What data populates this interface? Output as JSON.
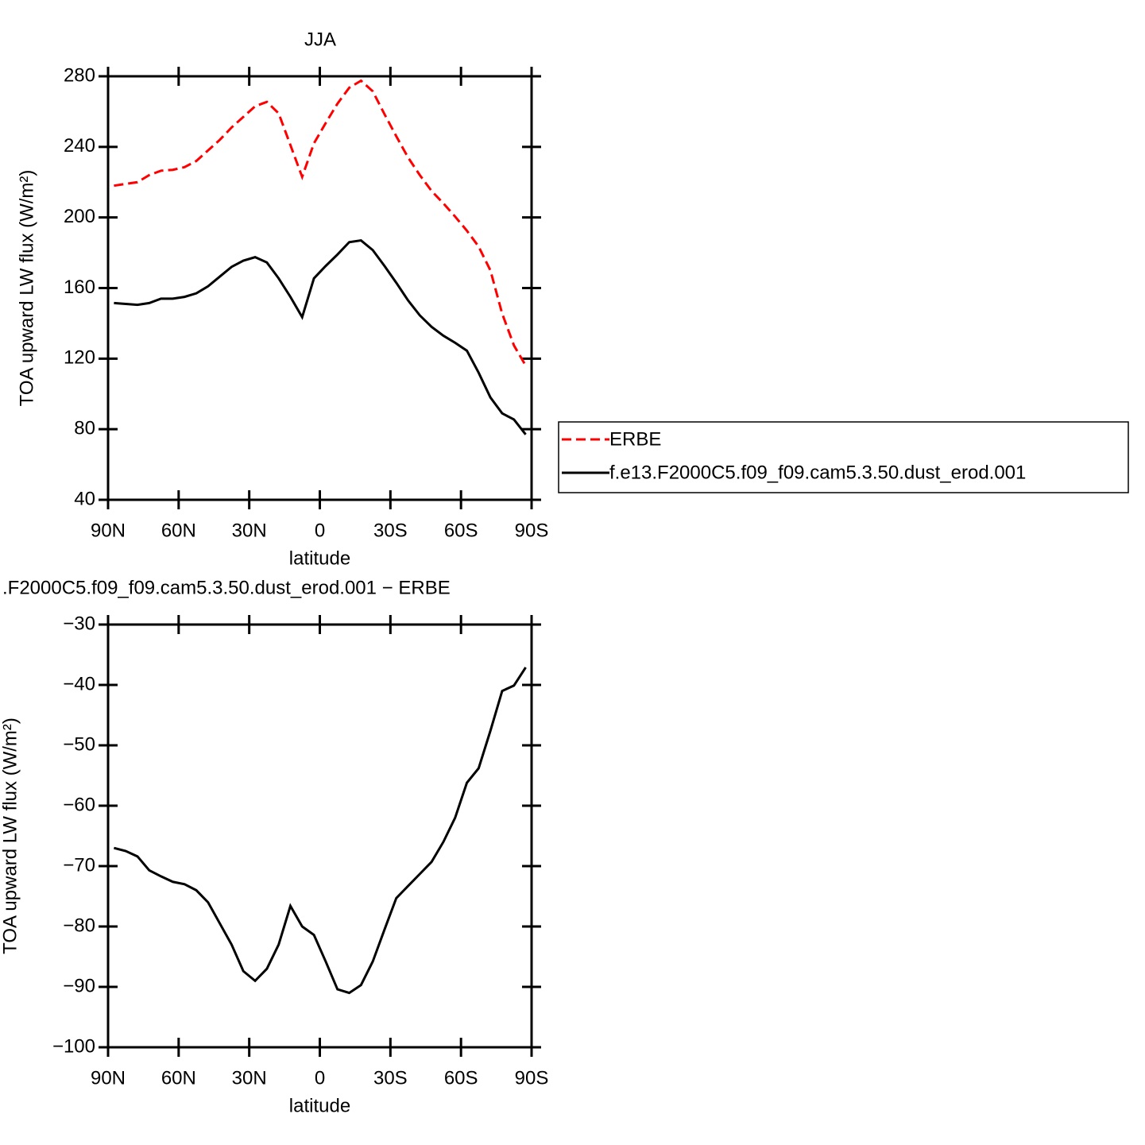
{
  "chart_data": [
    {
      "type": "line",
      "title": "JJA",
      "xlabel": "latitude",
      "ylabel": "TOA upward LW flux (W/m²)",
      "x": [
        87.5,
        82.5,
        77.5,
        72.5,
        67.5,
        62.5,
        57.5,
        52.5,
        47.5,
        42.5,
        37.5,
        32.5,
        27.5,
        22.5,
        17.5,
        12.5,
        7.5,
        2.5,
        -2.5,
        -7.5,
        -12.5,
        -17.5,
        -22.5,
        -27.5,
        -32.5,
        -37.5,
        -42.5,
        -47.5,
        -52.5,
        -57.5,
        -62.5,
        -67.5,
        -72.5,
        -77.5,
        -82.5,
        -87.5
      ],
      "series": [
        {
          "name": "ERBE",
          "color": "#ff0000",
          "linestyle": "dashed",
          "values": [
            218,
            219,
            220,
            224,
            226.5,
            227,
            228.5,
            232,
            238,
            244,
            251,
            257,
            263,
            265.5,
            259,
            241,
            223,
            242,
            253.5,
            264.5,
            273.5,
            277.5,
            271.5,
            258.5,
            246,
            234,
            224,
            215,
            208,
            200.5,
            192.5,
            183.5,
            170,
            145.5,
            127.5,
            116
          ]
        },
        {
          "name": "f.e13.F2000C5.f09_f09.cam5.3.50.dust_erod.001",
          "color": "#000000",
          "linestyle": "solid",
          "values": [
            151.5,
            151,
            150.5,
            151.5,
            154,
            154,
            155,
            157,
            161,
            166.5,
            172,
            175.5,
            177.5,
            174.5,
            165.5,
            155,
            143.5,
            165.5,
            172.5,
            179,
            186,
            187,
            181.5,
            172.5,
            163,
            153,
            144.5,
            138,
            133,
            129,
            124.5,
            112,
            98,
            89,
            85.5,
            77
          ]
        }
      ],
      "xlim": [
        90,
        -90
      ],
      "xticks": [
        {
          "value": 90,
          "label": "90N"
        },
        {
          "value": 60,
          "label": "60N"
        },
        {
          "value": 30,
          "label": "30N"
        },
        0,
        {
          "value": -30,
          "label": "30S"
        },
        {
          "value": -60,
          "label": "60S"
        },
        {
          "value": -90,
          "label": "90S"
        }
      ],
      "ylim": [
        40,
        280
      ],
      "yticks": [
        40,
        80,
        120,
        160,
        200,
        240,
        280
      ],
      "legend": "right"
    },
    {
      "type": "line",
      "title": ".F2000C5.f09_f09.cam5.3.50.dust_erod.001 − ERBE",
      "xlabel": "latitude",
      "ylabel": "TOA upward LW flux (W/m²)",
      "x": [
        87.5,
        82.5,
        77.5,
        72.5,
        67.5,
        62.5,
        57.5,
        52.5,
        47.5,
        42.5,
        37.5,
        32.5,
        27.5,
        22.5,
        17.5,
        12.5,
        7.5,
        2.5,
        -2.5,
        -7.5,
        -12.5,
        -17.5,
        -22.5,
        -27.5,
        -32.5,
        -37.5,
        -42.5,
        -47.5,
        -52.5,
        -57.5,
        -62.5,
        -67.5,
        -72.5,
        -77.5,
        -82.5,
        -87.5
      ],
      "series": [
        {
          "color": "#000000",
          "linestyle": "solid",
          "values": [
            -67,
            -67.5,
            -68.4,
            -70.7,
            -71.7,
            -72.6,
            -73,
            -74,
            -76,
            -79.5,
            -83,
            -87.4,
            -89,
            -87,
            -83,
            -76.6,
            -80,
            -81.4,
            -85.8,
            -90.4,
            -91,
            -89.7,
            -85.8,
            -80.5,
            -75.3,
            -73.3,
            -71.3,
            -69.3,
            -66,
            -62,
            -56.2,
            -53.8,
            -47.6,
            -41,
            -40.1,
            -37.1
          ]
        }
      ],
      "xlim": [
        90,
        -90
      ],
      "xticks": [
        {
          "value": 90,
          "label": "90N"
        },
        {
          "value": 60,
          "label": "60N"
        },
        {
          "value": 30,
          "label": "30N"
        },
        0,
        {
          "value": -30,
          "label": "30S"
        },
        {
          "value": -60,
          "label": "60S"
        },
        {
          "value": -90,
          "label": "90S"
        }
      ],
      "ylim": [
        -100,
        -30
      ],
      "yticks": [
        {
          "value": -100,
          "label": "−100"
        },
        {
          "value": -90,
          "label": "−90"
        },
        {
          "value": -80,
          "label": "−80"
        },
        {
          "value": -70,
          "label": "−70"
        },
        {
          "value": -60,
          "label": "−60"
        },
        {
          "value": -50,
          "label": "−50"
        },
        {
          "value": -40,
          "label": "−40"
        },
        {
          "value": -30,
          "label": "−30"
        }
      ]
    }
  ]
}
